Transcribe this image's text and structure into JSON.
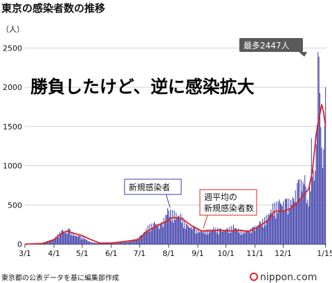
{
  "chart_data": {
    "type": "bar",
    "title": "東京の感染者数の推移",
    "unit_label": "（人）",
    "headline": "勝負したけど、逆に感染拡大",
    "ylim": [
      0,
      2600
    ],
    "y_ticks": [
      0,
      500,
      1000,
      1500,
      2000,
      2500
    ],
    "y_tick_labels": [
      "0",
      "500",
      "1000",
      "1500",
      "2000",
      "2500"
    ],
    "x_start": "2020-03-01",
    "x_end": "2021-01-16",
    "x_tick_dates": [
      "2020-03-01",
      "2020-04-01",
      "2020-05-01",
      "2020-06-01",
      "2020-07-01",
      "2020-08-01",
      "2020-09-01",
      "2020-10-01",
      "2020-11-01",
      "2020-12-01",
      "2021-01-15"
    ],
    "x_tick_labels": [
      "3/1",
      "4/1",
      "5/1",
      "6/1",
      "7/1",
      "8/1",
      "9/1",
      "10/1",
      "11/1",
      "12/1",
      "1/15"
    ],
    "series": [
      {
        "name": "新規感染者",
        "type": "bar",
        "color": "#3a3aa8",
        "points": [
          [
            "2020-03-01",
            2
          ],
          [
            "2020-03-15",
            5
          ],
          [
            "2020-03-25",
            40
          ],
          [
            "2020-04-01",
            70
          ],
          [
            "2020-04-05",
            130
          ],
          [
            "2020-04-10",
            190
          ],
          [
            "2020-04-14",
            160
          ],
          [
            "2020-04-17",
            205
          ],
          [
            "2020-04-22",
            130
          ],
          [
            "2020-04-28",
            110
          ],
          [
            "2020-05-03",
            90
          ],
          [
            "2020-05-08",
            40
          ],
          [
            "2020-05-15",
            20
          ],
          [
            "2020-05-25",
            10
          ],
          [
            "2020-06-05",
            20
          ],
          [
            "2020-06-15",
            40
          ],
          [
            "2020-06-25",
            50
          ],
          [
            "2020-07-02",
            110
          ],
          [
            "2020-07-10",
            240
          ],
          [
            "2020-07-17",
            290
          ],
          [
            "2020-07-24",
            260
          ],
          [
            "2020-07-31",
            460
          ],
          [
            "2020-08-07",
            430
          ],
          [
            "2020-08-14",
            390
          ],
          [
            "2020-08-21",
            250
          ],
          [
            "2020-08-28",
            230
          ],
          [
            "2020-09-04",
            180
          ],
          [
            "2020-09-11",
            190
          ],
          [
            "2020-09-18",
            220
          ],
          [
            "2020-09-25",
            200
          ],
          [
            "2020-10-02",
            200
          ],
          [
            "2020-10-09",
            250
          ],
          [
            "2020-10-16",
            190
          ],
          [
            "2020-10-23",
            180
          ],
          [
            "2020-10-30",
            220
          ],
          [
            "2020-11-06",
            290
          ],
          [
            "2020-11-13",
            370
          ],
          [
            "2020-11-20",
            520
          ],
          [
            "2020-11-27",
            570
          ],
          [
            "2020-12-04",
            580
          ],
          [
            "2020-12-11",
            600
          ],
          [
            "2020-12-17",
            820
          ],
          [
            "2020-12-24",
            880
          ],
          [
            "2020-12-28",
            480
          ],
          [
            "2020-12-31",
            1350
          ],
          [
            "2021-01-03",
            810
          ],
          [
            "2021-01-05",
            1270
          ],
          [
            "2021-01-07",
            2447
          ],
          [
            "2021-01-08",
            2390
          ],
          [
            "2021-01-10",
            1490
          ],
          [
            "2021-01-12",
            970
          ],
          [
            "2021-01-14",
            1500
          ],
          [
            "2021-01-15",
            2000
          ]
        ]
      },
      {
        "name": "週平均の新規感染者",
        "type": "line",
        "color": "#e02020",
        "points": [
          [
            "2020-03-01",
            2
          ],
          [
            "2020-03-20",
            10
          ],
          [
            "2020-04-01",
            60
          ],
          [
            "2020-04-08",
            130
          ],
          [
            "2020-04-15",
            170
          ],
          [
            "2020-04-22",
            140
          ],
          [
            "2020-05-01",
            110
          ],
          [
            "2020-05-10",
            60
          ],
          [
            "2020-05-20",
            15
          ],
          [
            "2020-06-01",
            15
          ],
          [
            "2020-06-15",
            35
          ],
          [
            "2020-06-30",
            60
          ],
          [
            "2020-07-10",
            170
          ],
          [
            "2020-07-20",
            240
          ],
          [
            "2020-07-31",
            300
          ],
          [
            "2020-08-05",
            340
          ],
          [
            "2020-08-15",
            330
          ],
          [
            "2020-08-25",
            240
          ],
          [
            "2020-09-05",
            170
          ],
          [
            "2020-09-15",
            170
          ],
          [
            "2020-09-25",
            180
          ],
          [
            "2020-10-05",
            170
          ],
          [
            "2020-10-15",
            180
          ],
          [
            "2020-10-25",
            165
          ],
          [
            "2020-11-05",
            220
          ],
          [
            "2020-11-15",
            310
          ],
          [
            "2020-11-22",
            420
          ],
          [
            "2020-12-01",
            420
          ],
          [
            "2020-12-08",
            450
          ],
          [
            "2020-12-15",
            520
          ],
          [
            "2020-12-22",
            620
          ],
          [
            "2020-12-28",
            700
          ],
          [
            "2021-01-01",
            930
          ],
          [
            "2021-01-05",
            1400
          ],
          [
            "2021-01-08",
            1600
          ],
          [
            "2021-01-11",
            1780
          ],
          [
            "2021-01-13",
            1680
          ],
          [
            "2021-01-15",
            1500
          ]
        ]
      }
    ],
    "annotations": {
      "peak": "最多2447人",
      "bar_label": "新規感染者",
      "avg_label_line1": "週平均の",
      "avg_label_line2": "新規感染者数"
    },
    "source": "東京都の公表データを基に編集部作成",
    "brand": "nippon.com"
  }
}
